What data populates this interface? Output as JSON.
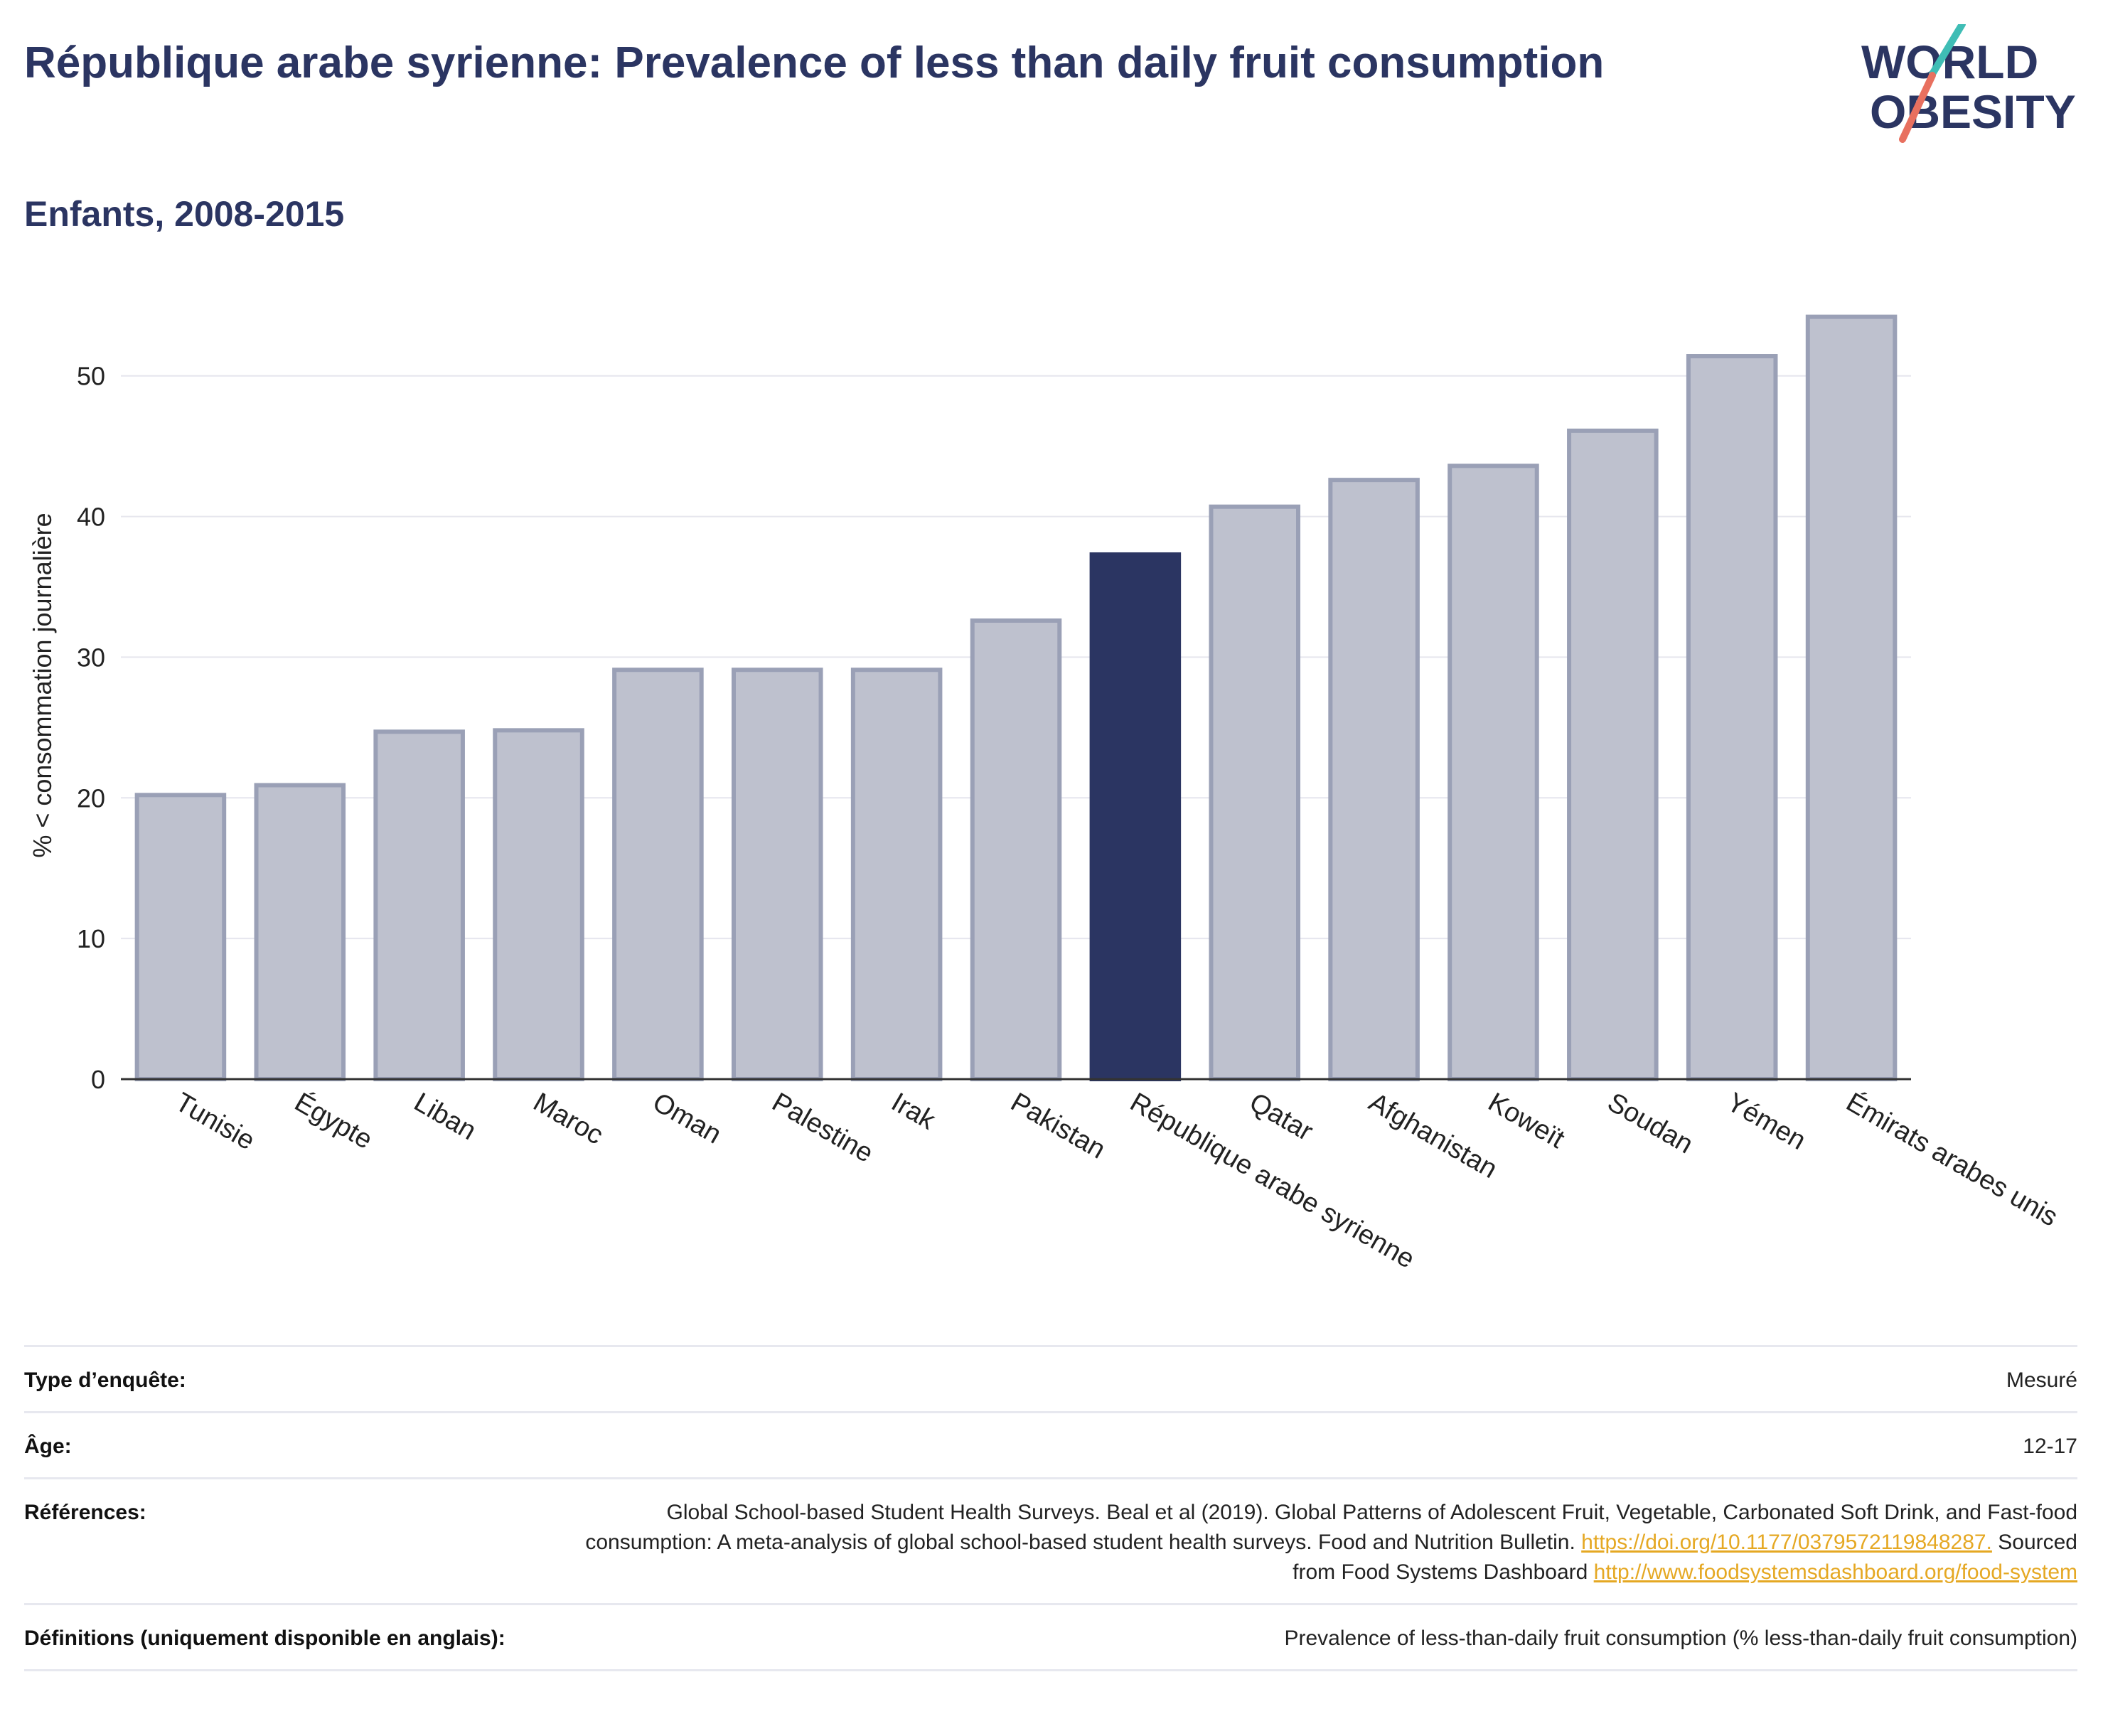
{
  "header": {
    "title": "République arabe syrienne: Prevalence of less than daily fruit consumption",
    "subtitle": "Enfants, 2008-2015"
  },
  "logo": {
    "line1": "WORLD",
    "line2": "OBESITY"
  },
  "colors": {
    "highlight": "#2b3562",
    "bar_fill": "#bec1ce",
    "bar_stroke": "#9aa0b6",
    "grid": "#e6e6ee",
    "link": "#e5a823"
  },
  "chart_data": {
    "type": "bar",
    "ylabel": "% < consommation journalière",
    "xlabel": "",
    "ylim": [
      0,
      56
    ],
    "yticks": [
      0,
      10,
      20,
      30,
      40,
      50
    ],
    "grid": true,
    "highlight": "République arabe syrienne",
    "categories": [
      "Tunisie",
      "Égypte",
      "Liban",
      "Maroc",
      "Oman",
      "Palestine",
      "Irak",
      "Pakistan",
      "République arabe syrienne",
      "Qatar",
      "Afghanistan",
      "Koweït",
      "Soudan",
      "Yémen",
      "Émirats arabes unis"
    ],
    "values": [
      20.2,
      20.9,
      24.7,
      24.8,
      29.1,
      29.1,
      29.1,
      32.6,
      37.3,
      40.7,
      42.6,
      43.6,
      46.1,
      51.4,
      54.2
    ]
  },
  "info": {
    "survey_type_label": "Type d’enquête:",
    "survey_type_value": "Mesuré",
    "age_label": "Âge:",
    "age_value": "12-17",
    "references_label": "Références:",
    "references_text_1": "Global School-based Student Health Surveys. Beal et al (2019). Global Patterns of Adolescent Fruit, Vegetable, Carbonated Soft Drink, and Fast-food consumption: A meta-analysis of global school-based student health surveys. Food and Nutrition Bulletin.",
    "references_link_1": "https://doi.org/10.1177/0379572119848287.",
    "references_text_2": "Sourced from Food Systems Dashboard",
    "references_link_2": "http://www.foodsystemsdashboard.org/food-system",
    "definitions_label": "Définitions (uniquement disponible en anglais):",
    "definitions_value": "Prevalence of less-than-daily fruit consumption (% less-than-daily fruit consumption)"
  }
}
